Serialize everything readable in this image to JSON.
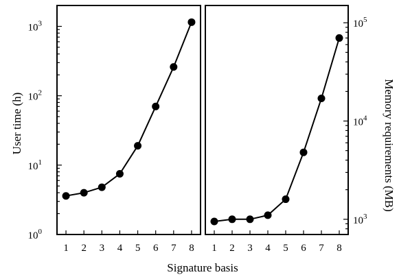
{
  "chart_data": [
    {
      "type": "line",
      "xlabel": "Signature basis",
      "ylabel": "User time (h)",
      "y_scale": "log",
      "ylim": [
        1,
        2000
      ],
      "xlim": [
        0.5,
        8.5
      ],
      "x": [
        1,
        2,
        3,
        4,
        5,
        6,
        7,
        8
      ],
      "x_tick_labels": [
        "1",
        "2",
        "3",
        "4",
        "5",
        "6",
        "7",
        "8"
      ],
      "y_ticks": [
        1,
        10,
        100,
        1000
      ],
      "y_tick_labels": [
        {
          "base": "10",
          "exp": "0"
        },
        {
          "base": "10",
          "exp": "1"
        },
        {
          "base": "10",
          "exp": "2"
        },
        {
          "base": "10",
          "exp": "3"
        }
      ],
      "series": [
        {
          "values": [
            3.6,
            4.0,
            4.8,
            7.5,
            19,
            70,
            260,
            1150
          ]
        }
      ]
    },
    {
      "type": "line",
      "xlabel": "Signature basis",
      "ylabel": "Memory requirements (MB)",
      "y_scale": "log",
      "ylim": [
        700,
        150000
      ],
      "xlim": [
        0.5,
        8.5
      ],
      "x": [
        1,
        2,
        3,
        4,
        5,
        6,
        7,
        8
      ],
      "x_tick_labels": [
        "1",
        "2",
        "3",
        "4",
        "5",
        "6",
        "7",
        "8"
      ],
      "y_ticks": [
        1000,
        10000,
        100000
      ],
      "y_tick_labels": [
        {
          "base": "10",
          "exp": "3"
        },
        {
          "base": "10",
          "exp": "4"
        },
        {
          "base": "10",
          "exp": "5"
        }
      ],
      "series": [
        {
          "values": [
            950,
            1000,
            1000,
            1100,
            1600,
            4800,
            17000,
            70000
          ]
        }
      ]
    }
  ],
  "colors": {
    "line": "#000000",
    "marker": "#000000",
    "frame": "#000000"
  }
}
